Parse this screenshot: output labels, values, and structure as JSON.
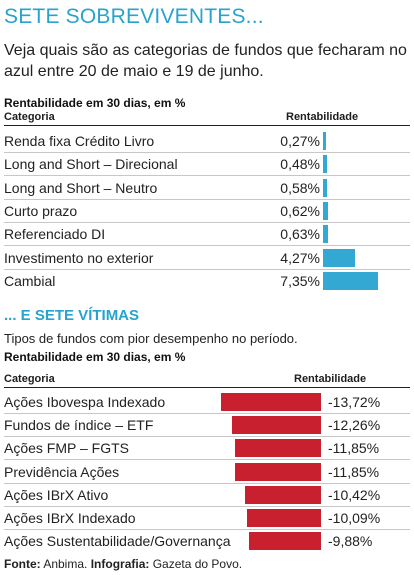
{
  "section1": {
    "title": "SETE SOBREVIVENTES...",
    "subtitle": "Veja quais são as categorias de fundos que fecharam no azul entre 20 de maio e 19 de junho.",
    "caption": "Rentabilidade em 30 dias, em %",
    "col_category": "Categoria",
    "col_value": "Rentabilidade"
  },
  "section2": {
    "title": "... E SETE VÍTIMAS",
    "subtitle": "Tipos de fundos com pior desempenho no período.",
    "caption": "Rentabilidade em 30 dias, em %",
    "col_category": "Categoria",
    "col_value": "Rentabilidade"
  },
  "source": {
    "label1": "Fonte:",
    "text1": "Anbima.",
    "label2": "Infografia:",
    "text2": "Gazeta do Povo."
  },
  "colors": {
    "title": "#27a3cd",
    "positive_bar": "#33a8d2",
    "negative_bar": "#c8202e"
  },
  "chart_data": [
    {
      "type": "bar",
      "title": "SETE SOBREVIVENTES...",
      "ylabel": "Rentabilidade",
      "categories": [
        "Renda fixa Crédito Livro",
        "Long and Short – Direcional",
        "Long and Short – Neutro",
        "Curto prazo",
        "Referenciado DI",
        "Investimento no exterior",
        "Cambial"
      ],
      "values": [
        0.27,
        0.48,
        0.58,
        0.62,
        0.63,
        4.27,
        7.35
      ],
      "labels": [
        "0,27%",
        "0,48%",
        "0,58%",
        "0,62%",
        "0,63%",
        "4,27%",
        "7,35%"
      ]
    },
    {
      "type": "bar",
      "title": "... E SETE VÍTIMAS",
      "ylabel": "Rentabilidade",
      "categories": [
        "Ações Ibovespa Indexado",
        "Fundos de índice – ETF",
        "Ações FMP – FGTS",
        "Previdência Ações",
        "Ações IBrX Ativo",
        "Ações IBrX Indexado",
        "Ações Sustentabilidade/Governança"
      ],
      "values": [
        -13.72,
        -12.26,
        -11.85,
        -11.85,
        -10.42,
        -10.09,
        -9.88
      ],
      "labels": [
        "-13,72%",
        "-12,26%",
        "-11,85%",
        "-11,85%",
        "-10,42%",
        "-10,09%",
        "-9,88%"
      ]
    }
  ]
}
